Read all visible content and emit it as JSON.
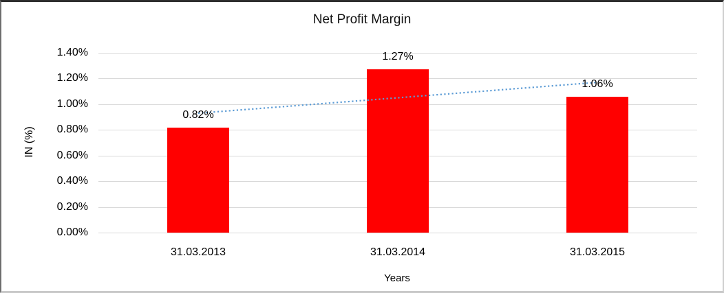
{
  "chart_data": {
    "type": "bar",
    "title": "Net Profit Margin",
    "categories": [
      "31.03.2013",
      "31.03.2014",
      "31.03.2015"
    ],
    "values": [
      0.82,
      1.27,
      1.06
    ],
    "value_labels": [
      "0.82%",
      "1.27%",
      "1.06%"
    ],
    "xlabel": "Years",
    "ylabel": "IN (%)",
    "ylim": [
      0,
      1.4
    ],
    "ytick_step": 0.2,
    "ytick_labels": [
      "0.00%",
      "0.20%",
      "0.40%",
      "0.60%",
      "0.80%",
      "1.00%",
      "1.20%",
      "1.40%"
    ],
    "grid": true,
    "legend": "none",
    "bar_color": "#ff0000",
    "gridline_color": "#d9d9d9",
    "text_color": "#000000",
    "trendline": {
      "type": "linear",
      "style": "dotted",
      "color": "#5b9bd5"
    }
  }
}
